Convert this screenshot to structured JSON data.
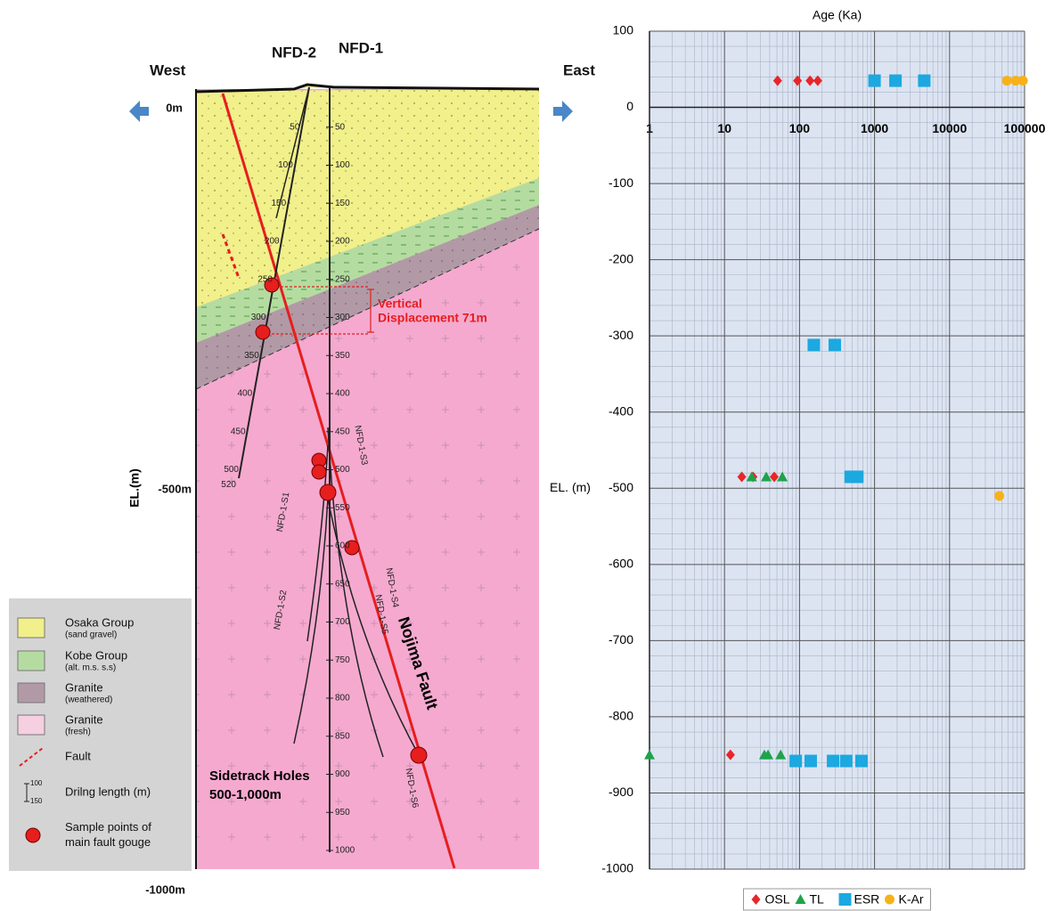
{
  "diagram": {
    "west": "West",
    "east": "East",
    "nfd2": "NFD-2",
    "nfd1": "NFD-1",
    "depth_0": "0m",
    "depth_500": "-500m",
    "depth_1000": "-1000m",
    "el_label": "EL.(m)",
    "vertical": "Vertical",
    "displacement": "Displacement 71m",
    "fault_name": "Nojima Fault",
    "sidetrack_1": "Sidetrack Holes",
    "sidetrack_2": "500-1,000m",
    "sidetrack_labels": [
      "NFD-1-S1",
      "NFD-1-S2",
      "NFD-1-S3",
      "NFD-1-S4",
      "NFD-1-S5",
      "NFD-1-S6"
    ],
    "nfd1_depths": [
      50,
      100,
      150,
      200,
      250,
      300,
      350,
      400,
      450,
      500,
      550,
      600,
      650,
      700,
      750,
      800,
      850,
      900,
      950,
      1000
    ],
    "nfd2_depths": [
      50,
      100,
      150,
      200,
      250,
      300,
      350,
      400,
      450,
      500,
      520
    ],
    "legend": [
      {
        "title": "Osaka Group",
        "sub": "(sand gravel)"
      },
      {
        "title": "Kobe Group",
        "sub": "(alt. m.s. s.s)"
      },
      {
        "title": "Granite",
        "sub": "(weathered)"
      },
      {
        "title": "Granite",
        "sub": "(fresh)"
      },
      {
        "title": "Fault"
      },
      {
        "title": "Drilng length (m)",
        "scale": [
          100,
          150
        ]
      },
      {
        "title": "Sample points of main fault gouge"
      }
    ]
  },
  "chart_data": {
    "type": "scatter",
    "title": "Age (Ka)",
    "y_label": "EL. (m)",
    "x_log": true,
    "xlim": [
      1,
      100000
    ],
    "xticks": [
      1,
      10,
      100,
      1000,
      10000,
      100000
    ],
    "ylim": [
      -1000,
      100
    ],
    "yticks": [
      -1000,
      -900,
      -800,
      -700,
      -600,
      -500,
      -400,
      -300,
      -200,
      -100,
      0,
      100
    ],
    "grid": true,
    "minor_grid": true,
    "legend": "bottom",
    "series": [
      {
        "name": "OSL",
        "color": "#e8262a",
        "marker": "diamond",
        "x": [
          51,
          94,
          138,
          175,
          17,
          24,
          46,
          12
        ],
        "y": [
          35,
          35,
          35,
          35,
          -485,
          -485,
          -485,
          -850
        ]
      },
      {
        "name": "TL",
        "color": "#1ea34a",
        "marker": "triangle",
        "x": [
          23,
          36,
          59,
          1,
          34,
          38,
          56
        ],
        "y": [
          -485,
          -485,
          -485,
          -850,
          -850,
          -850,
          -850
        ]
      },
      {
        "name": "ESR",
        "color": "#1ca8e0",
        "marker": "square",
        "x": [
          1000,
          1900,
          4600,
          155,
          295,
          480,
          590,
          89,
          141,
          280,
          420,
          670
        ],
        "y": [
          35,
          35,
          35,
          -312,
          -312,
          -485,
          -485,
          -858,
          -858,
          -858,
          -858,
          -858
        ]
      },
      {
        "name": "K-Ar",
        "color": "#f7b21a",
        "marker": "circle",
        "x": [
          58000,
          76000,
          95000,
          46000
        ],
        "y": [
          35,
          35,
          35,
          -510
        ]
      }
    ]
  }
}
